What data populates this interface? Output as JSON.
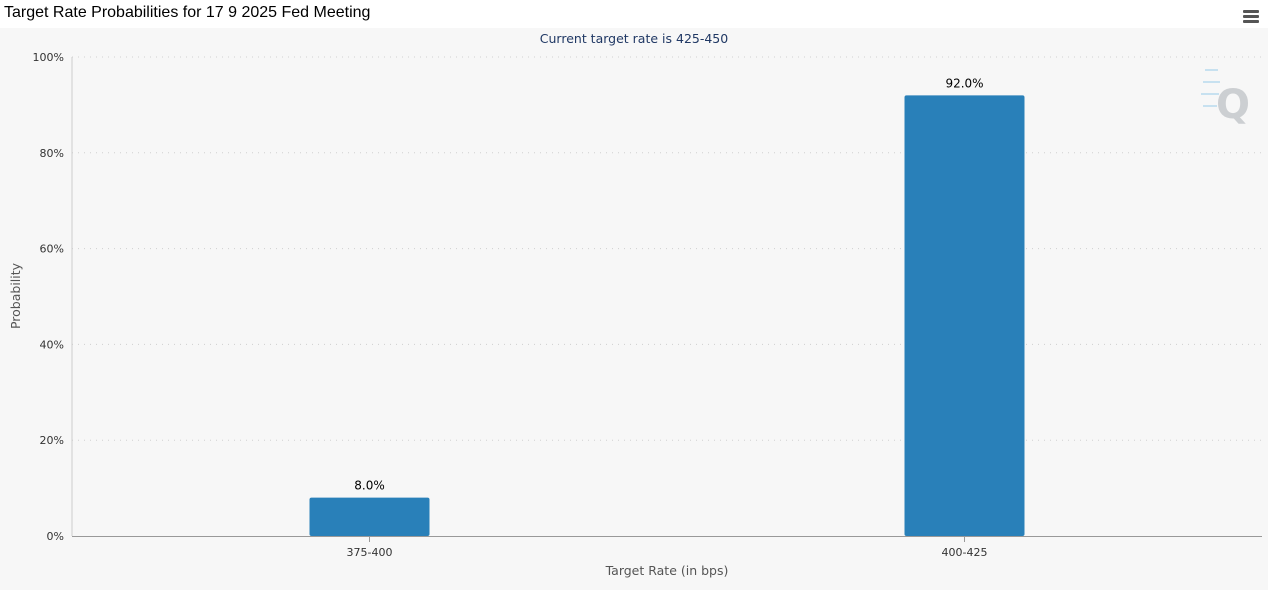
{
  "page": {
    "title": "Target Rate Probabilities for 17 9 2025 Fed Meeting"
  },
  "menu": {
    "icon": "hamburger-menu-icon"
  },
  "watermark": {
    "icon": "q-logo-icon",
    "text": "Q"
  },
  "colors": {
    "bar": "#2980b9",
    "plot_background": "#f7f7f7",
    "grid": "#d0d0d0",
    "axis_text": "#333333",
    "subtitle": "#203864"
  },
  "chart_data": {
    "type": "bar",
    "title": "Target Rate Probabilities for 17 9 2025 Fed Meeting",
    "subtitle": "Current target rate is 425-450",
    "xlabel": "Target Rate (in bps)",
    "ylabel": "Probability",
    "categories": [
      "375-400",
      "400-425"
    ],
    "values": [
      8.0,
      92.0
    ],
    "data_labels": [
      "8.0%",
      "92.0%"
    ],
    "ylim": [
      0,
      100
    ],
    "yticks": [
      0,
      20,
      40,
      60,
      80,
      100
    ],
    "ytick_labels": [
      "0%",
      "20%",
      "40%",
      "60%",
      "80%",
      "100%"
    ],
    "grid": true,
    "legend": "none"
  }
}
